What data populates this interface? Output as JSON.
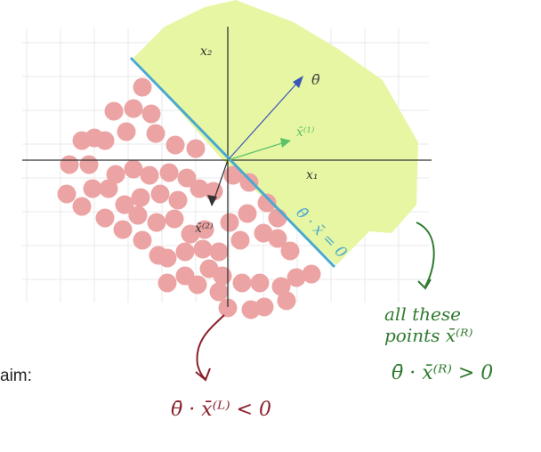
{
  "labels": {
    "x2_axis": "x₂",
    "x1_axis": "x₁",
    "theta": "θ̄",
    "x1_point": "x̄⁽¹⁾",
    "x2_point": "x̄⁽²⁾",
    "boundary": "θ̄ · x̄ = 0",
    "claim_fragment": "aim:"
  },
  "annotations": {
    "right_line1": "all these",
    "right_line2": "points x̄⁽ᴿ⁾",
    "right_ineq": "θ̄ · x̄⁽ᴿ⁾ > 0",
    "left_ineq": "θ̄ · x̄⁽ᴸ⁾ < 0"
  },
  "colors": {
    "positive_region": "#e6f59d",
    "negative_points": "#eca3a3",
    "boundary_line": "#4aa9d0",
    "theta_arrow": "#3b55b8",
    "x1_color": "#5cc26a",
    "right_note": "#2f7a2f",
    "left_note": "#8a1f2a",
    "axis": "#333333",
    "grid": "#e7e7e7"
  }
}
